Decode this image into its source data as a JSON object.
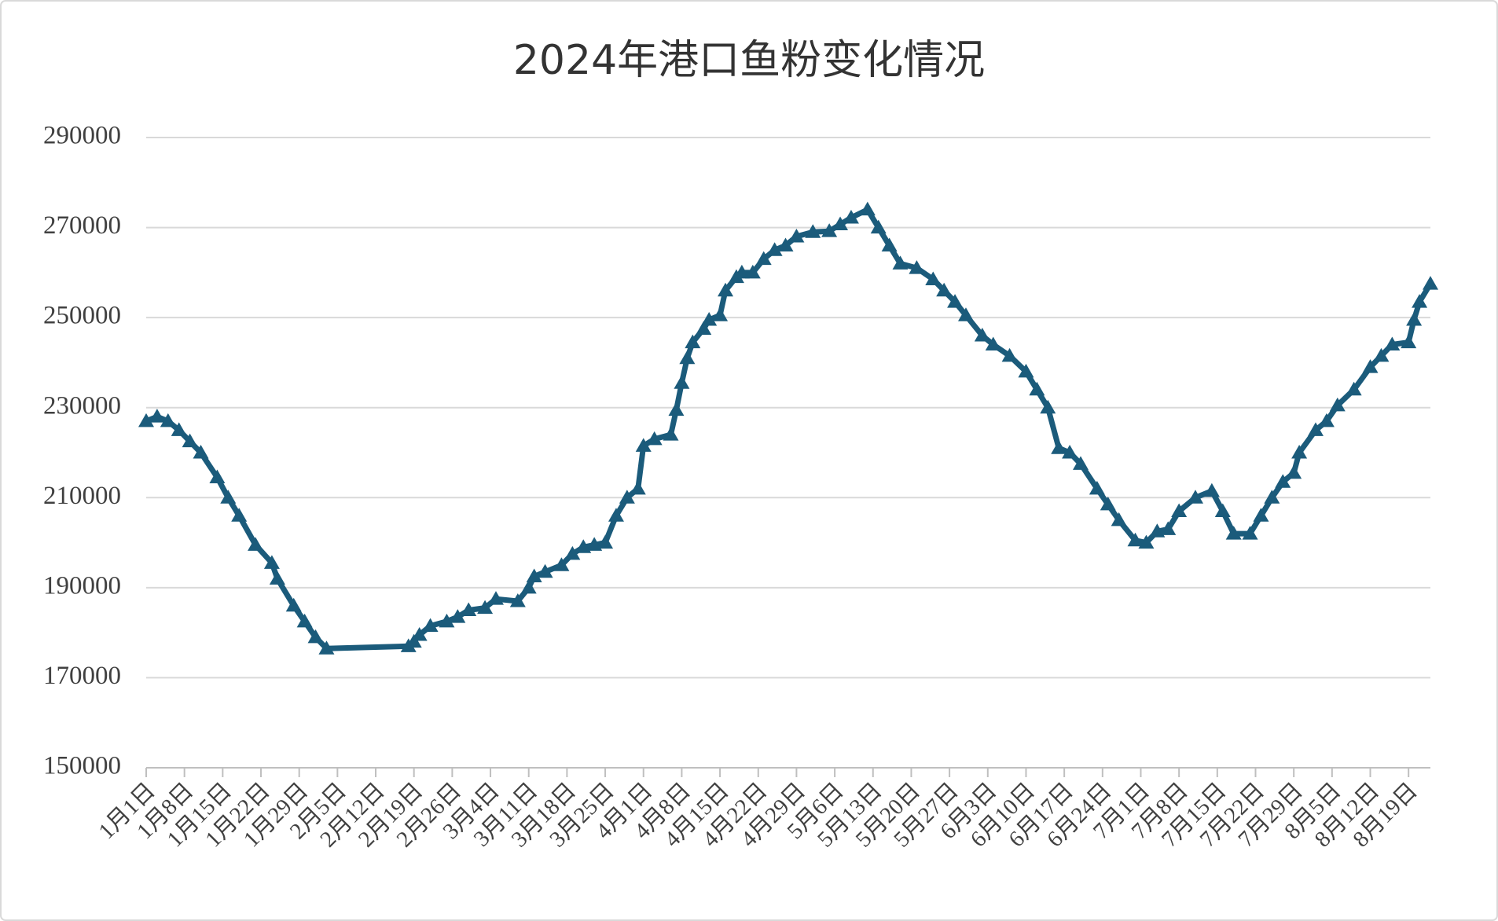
{
  "chart_data": {
    "type": "line",
    "title": "2024年港口鱼粉变化情况",
    "color": "#1b5b7b",
    "marker": "triangle",
    "grid": true,
    "xlim": [
      0,
      235
    ],
    "xticks": [
      {
        "value": 0,
        "label": "1月1日"
      },
      {
        "value": 7,
        "label": "1月8日"
      },
      {
        "value": 14,
        "label": "1月15日"
      },
      {
        "value": 21,
        "label": "1月22日"
      },
      {
        "value": 28,
        "label": "1月29日"
      },
      {
        "value": 35,
        "label": "2月5日"
      },
      {
        "value": 42,
        "label": "2月12日"
      },
      {
        "value": 49,
        "label": "2月19日"
      },
      {
        "value": 56,
        "label": "2月26日"
      },
      {
        "value": 63,
        "label": "3月4日"
      },
      {
        "value": 70,
        "label": "3月11日"
      },
      {
        "value": 77,
        "label": "3月18日"
      },
      {
        "value": 84,
        "label": "3月25日"
      },
      {
        "value": 91,
        "label": "4月1日"
      },
      {
        "value": 98,
        "label": "4月8日"
      },
      {
        "value": 105,
        "label": "4月15日"
      },
      {
        "value": 112,
        "label": "4月22日"
      },
      {
        "value": 119,
        "label": "4月29日"
      },
      {
        "value": 126,
        "label": "5月6日"
      },
      {
        "value": 133,
        "label": "5月13日"
      },
      {
        "value": 140,
        "label": "5月20日"
      },
      {
        "value": 147,
        "label": "5月27日"
      },
      {
        "value": 154,
        "label": "6月3日"
      },
      {
        "value": 161,
        "label": "6月10日"
      },
      {
        "value": 168,
        "label": "6月17日"
      },
      {
        "value": 175,
        "label": "6月24日"
      },
      {
        "value": 182,
        "label": "7月1日"
      },
      {
        "value": 189,
        "label": "7月8日"
      },
      {
        "value": 196,
        "label": "7月15日"
      },
      {
        "value": 203,
        "label": "7月22日"
      },
      {
        "value": 210,
        "label": "7月29日"
      },
      {
        "value": 217,
        "label": "8月5日"
      },
      {
        "value": 224,
        "label": "8月12日"
      },
      {
        "value": 231,
        "label": "8月19日"
      }
    ],
    "ylim": [
      150000,
      290000
    ],
    "yticks": [
      150000,
      170000,
      190000,
      210000,
      230000,
      250000,
      270000,
      290000
    ],
    "x": [
      0,
      2,
      4,
      6,
      8,
      10,
      13,
      15,
      17,
      20,
      23,
      24,
      27,
      29,
      31,
      33,
      48,
      49,
      50,
      52,
      55,
      57,
      59,
      62,
      64,
      68,
      70,
      71,
      73,
      76,
      78,
      80,
      82,
      84,
      86,
      88,
      90,
      91,
      93,
      96,
      97,
      98,
      99,
      100,
      102,
      103,
      105,
      106,
      108,
      109,
      111,
      113,
      115,
      117,
      119,
      122,
      125,
      127,
      129,
      132,
      134,
      136,
      138,
      141,
      144,
      146,
      148,
      150,
      153,
      155,
      158,
      161,
      163,
      165,
      167,
      169,
      171,
      174,
      176,
      178,
      181,
      183,
      185,
      187,
      189,
      192,
      195,
      197,
      199,
      202,
      204,
      206,
      208,
      210,
      211,
      214,
      216,
      218,
      221,
      224,
      226,
      228,
      231,
      232,
      233,
      235
    ],
    "values": [
      227000,
      228000,
      227000,
      225000,
      222500,
      220000,
      214500,
      210000,
      206000,
      199500,
      195500,
      192000,
      186000,
      182500,
      179000,
      176500,
      177000,
      178000,
      179500,
      181500,
      182500,
      183500,
      185000,
      185500,
      187500,
      187000,
      190000,
      192500,
      193500,
      195000,
      197500,
      199000,
      199500,
      200000,
      206000,
      210000,
      212000,
      221500,
      223000,
      224000,
      229500,
      235500,
      241000,
      244500,
      247500,
      249500,
      250500,
      256000,
      259000,
      260000,
      260000,
      263000,
      265000,
      266000,
      268000,
      269000,
      269200,
      270700,
      272200,
      274000,
      270000,
      266000,
      262000,
      261000,
      258500,
      256000,
      253500,
      250500,
      246000,
      244000,
      241500,
      238000,
      234000,
      230000,
      221000,
      220000,
      217500,
      212000,
      208500,
      205000,
      200500,
      200000,
      202500,
      203000,
      207000,
      210000,
      211500,
      207000,
      202000,
      202000,
      206000,
      210000,
      213500,
      215500,
      220000,
      225000,
      227000,
      230500,
      234000,
      239000,
      241500,
      244000,
      244500,
      249500,
      253500,
      257500
    ]
  }
}
